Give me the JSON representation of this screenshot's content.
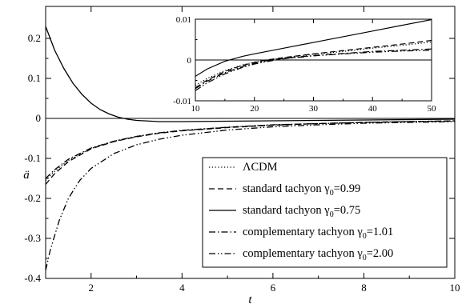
{
  "chart_data": [
    {
      "type": "line",
      "xlabel": "t",
      "ylabel": "ä",
      "xlim": [
        1,
        10
      ],
      "ylim": [
        -0.4,
        0.28
      ],
      "x_ticks": [
        2,
        4,
        6,
        8,
        10
      ],
      "x_tick_labels": [
        "2",
        "4",
        "6",
        "8",
        "10"
      ],
      "y_ticks": [
        -0.4,
        -0.3,
        -0.2,
        -0.1,
        0,
        0.1,
        0.2
      ],
      "y_tick_labels": [
        "-0.4",
        "-0.3",
        "-0.2",
        "-0.1",
        "0",
        "0.1",
        "0.2"
      ],
      "zero_line": true,
      "grid": false,
      "legend_position": "bottom-right",
      "series": [
        {
          "name": "ΛCDM",
          "subscript": "",
          "dash": "dotted",
          "x": [
            1,
            1.2,
            1.5,
            2,
            2.5,
            3,
            3.5,
            4,
            5,
            6,
            7,
            8,
            9,
            10
          ],
          "y": [
            -0.155,
            -0.132,
            -0.105,
            -0.075,
            -0.057,
            -0.045,
            -0.036,
            -0.03,
            -0.022,
            -0.016,
            -0.013,
            -0.01,
            -0.008,
            -0.006
          ]
        },
        {
          "name": "standard tachyon γ",
          "subscript": "0",
          "value_suffix": "=0.99",
          "dash": "dashed",
          "x": [
            1,
            1.2,
            1.5,
            2,
            2.5,
            3,
            3.5,
            4,
            5,
            6,
            7,
            8,
            9,
            10
          ],
          "y": [
            -0.165,
            -0.138,
            -0.108,
            -0.076,
            -0.058,
            -0.046,
            -0.037,
            -0.031,
            -0.023,
            -0.017,
            -0.013,
            -0.01,
            -0.008,
            -0.006
          ]
        },
        {
          "name": "standard tachyon γ",
          "subscript": "0",
          "value_suffix": "=0.75",
          "dash": "solid",
          "x": [
            1,
            1.2,
            1.4,
            1.6,
            1.8,
            2,
            2.2,
            2.4,
            2.6,
            2.8,
            3,
            3.5,
            4,
            5,
            6,
            7,
            8,
            9,
            10
          ],
          "y": [
            0.23,
            0.17,
            0.125,
            0.088,
            0.06,
            0.038,
            0.022,
            0.011,
            0.003,
            -0.002,
            -0.005,
            -0.008,
            -0.008,
            -0.007,
            -0.006,
            -0.005,
            -0.004,
            -0.003,
            -0.002
          ]
        },
        {
          "name": "complementary tachyon γ",
          "subscript": "0",
          "value_suffix": "=1.01",
          "dash": "dashdot",
          "x": [
            1,
            1.2,
            1.5,
            2,
            2.5,
            3,
            3.5,
            4,
            5,
            6,
            7,
            8,
            9,
            10
          ],
          "y": [
            -0.15,
            -0.128,
            -0.102,
            -0.074,
            -0.057,
            -0.045,
            -0.036,
            -0.03,
            -0.022,
            -0.016,
            -0.013,
            -0.01,
            -0.008,
            -0.007
          ]
        },
        {
          "name": "complementary tachyon γ",
          "subscript": "0",
          "value_suffix": "=2.00",
          "dash": "dashdotdot",
          "x": [
            1,
            1.1,
            1.3,
            1.5,
            1.75,
            2,
            2.5,
            3,
            3.5,
            4,
            5,
            6,
            7,
            8,
            9,
            10
          ],
          "y": [
            -0.38,
            -0.33,
            -0.255,
            -0.2,
            -0.155,
            -0.125,
            -0.088,
            -0.066,
            -0.052,
            -0.042,
            -0.029,
            -0.021,
            -0.016,
            -0.012,
            -0.01,
            -0.008
          ]
        }
      ]
    },
    {
      "type": "line",
      "role": "inset",
      "xlabel": "",
      "ylabel": "",
      "xlim": [
        10,
        50
      ],
      "ylim": [
        -0.01,
        0.01
      ],
      "x_ticks": [
        10,
        20,
        30,
        40,
        50
      ],
      "x_tick_labels": [
        "10",
        "20",
        "30",
        "40",
        "50"
      ],
      "y_ticks": [
        -0.01,
        0,
        0.01
      ],
      "y_tick_labels": [
        "-0.01",
        "0",
        "0.01"
      ],
      "zero_line": true,
      "series": [
        {
          "dash": "solid",
          "x": [
            10,
            12,
            15,
            18,
            20,
            25,
            30,
            35,
            40,
            45,
            50
          ],
          "y": [
            -0.004,
            -0.0022,
            -0.0003,
            0.0009,
            0.0015,
            0.0029,
            0.0043,
            0.0057,
            0.0071,
            0.0085,
            0.0099
          ]
        },
        {
          "dash": "dashed",
          "x": [
            10,
            12,
            15,
            18,
            20,
            22,
            25,
            30,
            35,
            40,
            45,
            50
          ],
          "y": [
            -0.0068,
            -0.0049,
            -0.0028,
            -0.0013,
            -0.0006,
            0.0,
            0.0006,
            0.0015,
            0.0023,
            0.0031,
            0.0039,
            0.0048
          ]
        },
        {
          "dash": "dotted",
          "x": [
            10,
            12,
            15,
            18,
            20,
            22,
            25,
            30,
            35,
            40,
            45,
            50
          ],
          "y": [
            -0.0062,
            -0.0045,
            -0.0026,
            -0.0012,
            -0.0005,
            0.0,
            0.0006,
            0.0014,
            0.0021,
            0.0029,
            0.0036,
            0.0044
          ]
        },
        {
          "dash": "dashdot",
          "x": [
            10,
            12,
            15,
            18,
            20,
            22,
            25,
            30,
            35,
            40,
            45,
            50
          ],
          "y": [
            -0.007,
            -0.0052,
            -0.0031,
            -0.0016,
            -0.0008,
            -0.0002,
            0.0004,
            0.0011,
            0.0016,
            0.0021,
            0.0024,
            0.0027
          ]
        },
        {
          "dash": "dashdotdot",
          "x": [
            10,
            12,
            15,
            18,
            20,
            22,
            25,
            30,
            35,
            40,
            45,
            50
          ],
          "y": [
            -0.0075,
            -0.0056,
            -0.0034,
            -0.0018,
            -0.001,
            -0.0004,
            0.0003,
            0.001,
            0.0015,
            0.0019,
            0.0022,
            0.0024
          ]
        }
      ]
    }
  ]
}
